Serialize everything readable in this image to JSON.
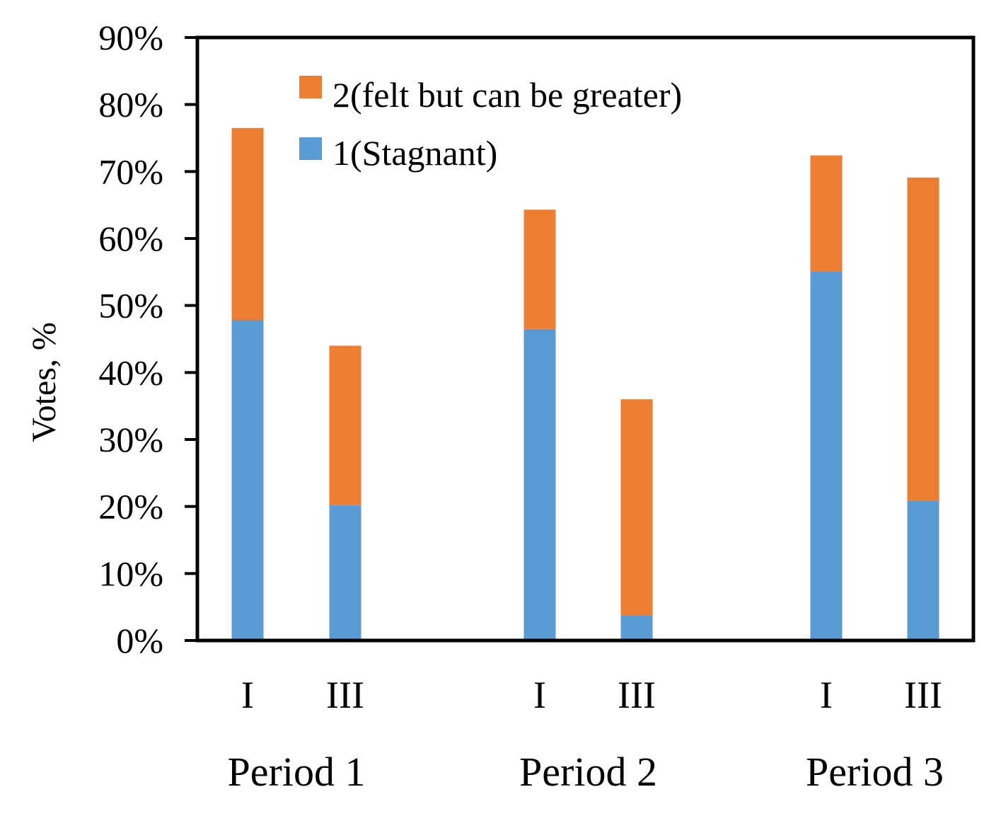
{
  "chart_data": {
    "type": "bar",
    "stacked": true,
    "ylabel": "Votes, %",
    "ylim": [
      0,
      90
    ],
    "yticks": [
      "0%",
      "10%",
      "20%",
      "30%",
      "40%",
      "50%",
      "60%",
      "70%",
      "80%",
      "90%"
    ],
    "groups": [
      "Period 1",
      "Period 2",
      "Period 3"
    ],
    "categories": [
      "I",
      "III",
      "I",
      "III",
      "I",
      "III"
    ],
    "category_group": [
      0,
      0,
      1,
      1,
      2,
      2
    ],
    "series": [
      {
        "name": "1(Stagnant)",
        "color": "#5B9BD5",
        "values": [
          47.8,
          20.2,
          46.5,
          3.7,
          55.1,
          20.9
        ]
      },
      {
        "name": "2(felt but can be greater)",
        "color": "#ED7D31",
        "values": [
          28.7,
          23.8,
          17.8,
          32.3,
          17.3,
          48.2
        ]
      }
    ],
    "legend": [
      "2(felt but can be greater)",
      "1(Stagnant)"
    ],
    "legend_position": "top-left"
  }
}
